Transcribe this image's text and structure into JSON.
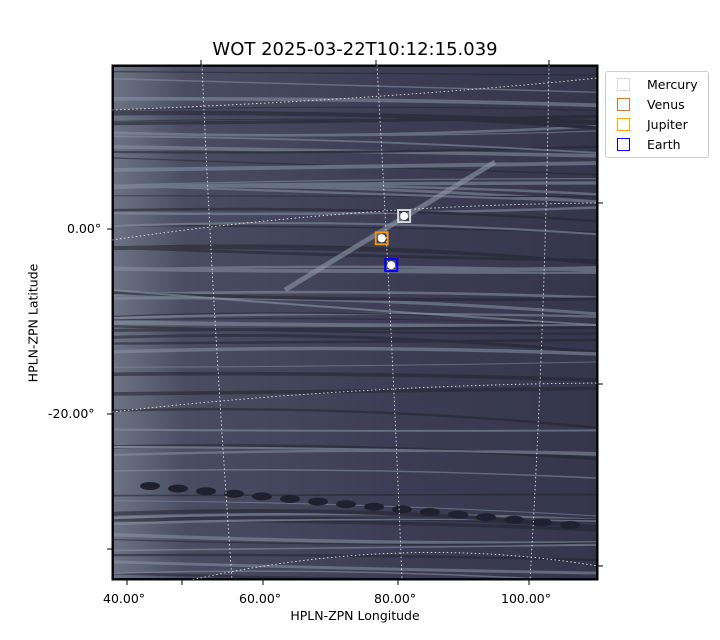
{
  "chart_data": {
    "type": "scatter",
    "title": "WOT 2025-03-22T10:12:15.039",
    "xlabel": "HPLN-ZPN Longitude",
    "ylabel": "HPLN-ZPN Latitude",
    "x_ticks": [
      "40.00°",
      "60.00°",
      "80.00°",
      "100.00°"
    ],
    "y_ticks": [
      "0.00°",
      "-20.00°"
    ],
    "grid": true,
    "legend_position": "outside-top-right",
    "background": "grayscale coronagraph image (bone colormap)",
    "series": [
      {
        "name": "Mercury",
        "color": "#d9d9d9",
        "x": 80.9,
        "y": 1.4
      },
      {
        "name": "Venus",
        "color": "#c8773a",
        "x": 77.6,
        "y": -1.0
      },
      {
        "name": "Jupiter",
        "color": "#ffa500",
        "x": 77.6,
        "y": -1.0
      },
      {
        "name": "Earth",
        "color": "#0000ff",
        "x": 79.0,
        "y": -3.9
      }
    ]
  }
}
